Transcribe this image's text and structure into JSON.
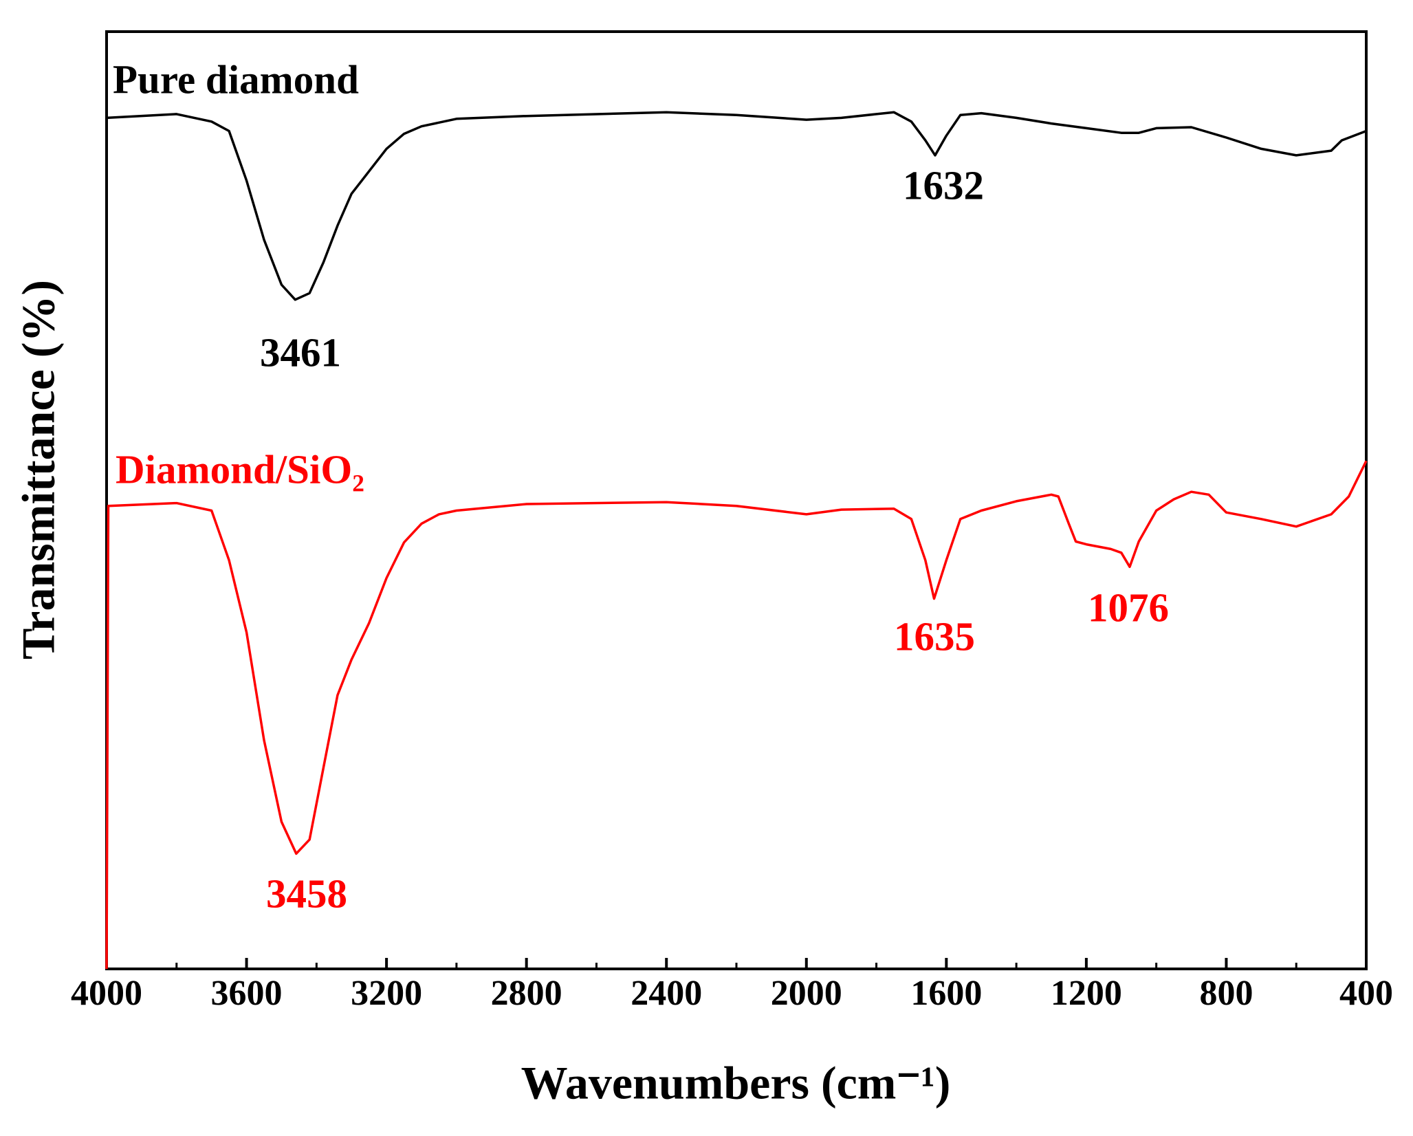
{
  "chart_data": {
    "type": "line",
    "xlabel": "Wavenumbers (cm⁻¹)",
    "ylabel": "Transmittance (%)",
    "xlim": [
      4000,
      400
    ],
    "xticks": [
      4000,
      3600,
      3200,
      2800,
      2400,
      2000,
      1600,
      1200,
      800,
      400
    ],
    "xminorticks": [
      3800,
      3400,
      3000,
      2600,
      2200,
      1800,
      1400,
      1000,
      600
    ],
    "ylim": [
      0,
      100
    ],
    "series": [
      {
        "name": "Pure diamond",
        "color": "#000000",
        "x": [
          4000,
          3800,
          3700,
          3650,
          3600,
          3550,
          3500,
          3461,
          3420,
          3380,
          3340,
          3300,
          3250,
          3200,
          3150,
          3100,
          3000,
          2800,
          2400,
          2200,
          2000,
          1900,
          1750,
          1700,
          1660,
          1632,
          1600,
          1560,
          1500,
          1400,
          1300,
          1200,
          1100,
          1050,
          1000,
          900,
          800,
          700,
          600,
          500,
          470,
          400
        ],
        "values": [
          90.8,
          91.2,
          90.4,
          89.4,
          84.1,
          77.8,
          73.0,
          71.4,
          72.1,
          75.4,
          79.3,
          82.7,
          85.1,
          87.5,
          89.1,
          89.9,
          90.7,
          91.0,
          91.4,
          91.1,
          90.6,
          90.8,
          91.4,
          90.4,
          88.4,
          86.8,
          88.9,
          91.1,
          91.3,
          90.8,
          90.2,
          89.7,
          89.2,
          89.2,
          89.7,
          89.8,
          88.7,
          87.5,
          86.8,
          87.3,
          88.4,
          89.4
        ]
      },
      {
        "name": "Diamond/SiO₂",
        "color": "#ff0000",
        "x": [
          4000,
          3995,
          3800,
          3700,
          3650,
          3600,
          3550,
          3500,
          3458,
          3420,
          3380,
          3340,
          3300,
          3250,
          3200,
          3150,
          3100,
          3050,
          3000,
          2800,
          2400,
          2200,
          2000,
          1900,
          1750,
          1700,
          1660,
          1635,
          1600,
          1560,
          1500,
          1400,
          1300,
          1280,
          1250,
          1230,
          1200,
          1130,
          1100,
          1076,
          1050,
          1000,
          950,
          900,
          850,
          800,
          700,
          600,
          500,
          450,
          400
        ],
        "values": [
          0,
          49.4,
          49.7,
          48.9,
          43.6,
          35.9,
          24.4,
          15.7,
          12.3,
          13.8,
          21.5,
          29.2,
          33.0,
          36.9,
          41.7,
          45.5,
          47.5,
          48.5,
          48.9,
          49.6,
          49.8,
          49.4,
          48.5,
          49.0,
          49.1,
          48.0,
          43.6,
          39.5,
          43.6,
          48.0,
          48.9,
          49.9,
          50.6,
          50.4,
          47.5,
          45.6,
          45.3,
          44.8,
          44.4,
          42.9,
          45.6,
          48.9,
          50.1,
          50.9,
          50.6,
          48.7,
          48.0,
          47.2,
          48.5,
          50.4,
          54.2
        ]
      }
    ],
    "annotations": [
      {
        "text": "3461",
        "color": "#000000"
      },
      {
        "text": "1632",
        "color": "#000000"
      },
      {
        "text": "3458",
        "color": "#ff0000"
      },
      {
        "text": "1635",
        "color": "#ff0000"
      },
      {
        "text": "1076",
        "color": "#ff0000"
      }
    ]
  }
}
